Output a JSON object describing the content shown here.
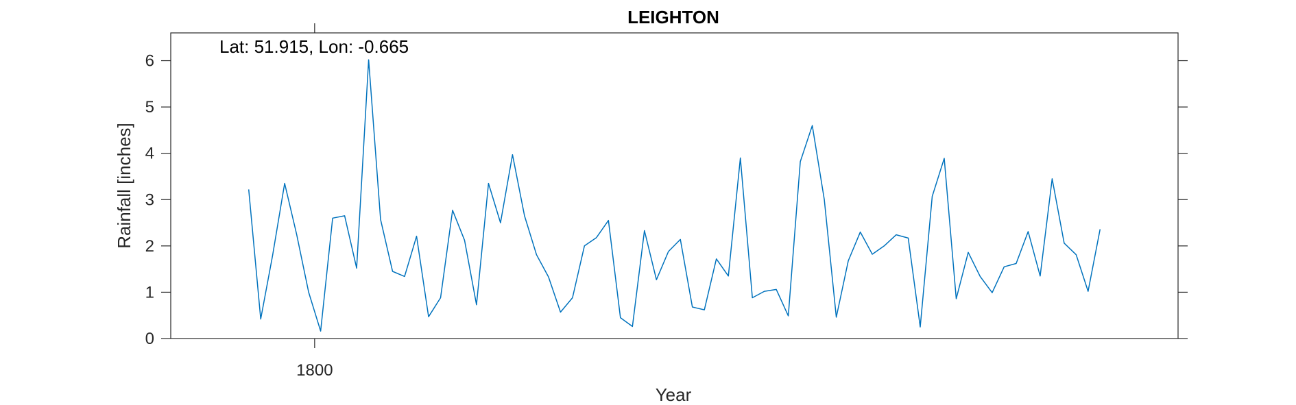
{
  "chart_data": {
    "type": "line",
    "title": "LEIGHTON",
    "annotation": "Lat: 51.915, Lon: -0.665",
    "xlabel": "Year",
    "ylabel": "Rainfall [inches]",
    "xlim": [
      1788,
      1872
    ],
    "ylim": [
      0,
      6.6
    ],
    "xticks": [
      1800
    ],
    "yticks": [
      0,
      1,
      2,
      3,
      4,
      5,
      6
    ],
    "grid": false,
    "legend": "none",
    "colors": {
      "series": "#0072BD",
      "axes": "#262626"
    },
    "series": [
      {
        "x": [
          1794.5,
          1795.5,
          1796.5,
          1797.5,
          1798.5,
          1799.5,
          1800.5,
          1801.5,
          1802.5,
          1803.5,
          1804.5,
          1805.5,
          1806.5,
          1807.5,
          1808.5,
          1809.5,
          1810.5,
          1811.5,
          1812.5,
          1813.5,
          1814.5,
          1815.5,
          1816.5,
          1817.5,
          1818.5,
          1819.5,
          1820.5,
          1821.5,
          1822.5,
          1823.5,
          1824.5,
          1825.5,
          1826.5,
          1827.5,
          1828.5,
          1829.5,
          1830.5,
          1831.5,
          1832.5,
          1833.5,
          1834.5,
          1835.5,
          1836.5,
          1837.5,
          1838.5,
          1839.5,
          1840.5,
          1841.5,
          1842.5,
          1843.5,
          1844.5,
          1845.5,
          1846.5,
          1847.5,
          1848.5,
          1849.5,
          1850.5,
          1851.5,
          1852.5,
          1853.5,
          1854.5,
          1855.5,
          1856.5,
          1857.5,
          1858.5,
          1859.5,
          1860.5,
          1861.5,
          1862.5,
          1863.5,
          1864.5,
          1865.5
        ],
        "values": [
          3.22,
          0.42,
          1.8,
          3.35,
          2.25,
          1.0,
          0.16,
          2.6,
          2.65,
          1.52,
          6.02,
          2.57,
          1.45,
          1.34,
          2.21,
          0.47,
          0.88,
          2.77,
          2.12,
          0.73,
          3.35,
          2.5,
          3.97,
          2.65,
          1.81,
          1.33,
          0.57,
          0.88,
          2.0,
          2.18,
          2.55,
          0.45,
          0.26,
          2.33,
          1.27,
          1.88,
          2.14,
          0.68,
          0.62,
          1.72,
          1.35,
          3.9,
          0.88,
          1.02,
          1.06,
          0.49,
          3.82,
          4.6,
          3.0,
          0.46,
          1.68,
          2.3,
          1.82,
          2.0,
          2.24,
          2.17,
          0.25,
          3.07,
          3.89,
          0.86,
          1.86,
          1.34,
          0.99,
          1.55,
          1.62,
          2.31,
          1.35,
          3.45,
          2.06,
          1.81,
          1.02,
          2.36
        ]
      }
    ]
  }
}
